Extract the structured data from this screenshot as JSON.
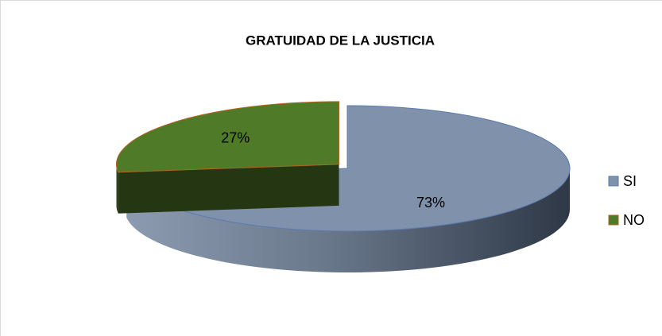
{
  "chart_data": {
    "type": "pie",
    "title": "GRATUIDAD DE LA JUSTICIA",
    "categories": [
      "SI",
      "NO"
    ],
    "values": [
      73,
      27
    ],
    "value_labels": [
      "73%",
      "27%"
    ],
    "colors": [
      "#7f91ab",
      "#4f7a28"
    ],
    "legend": "right"
  }
}
